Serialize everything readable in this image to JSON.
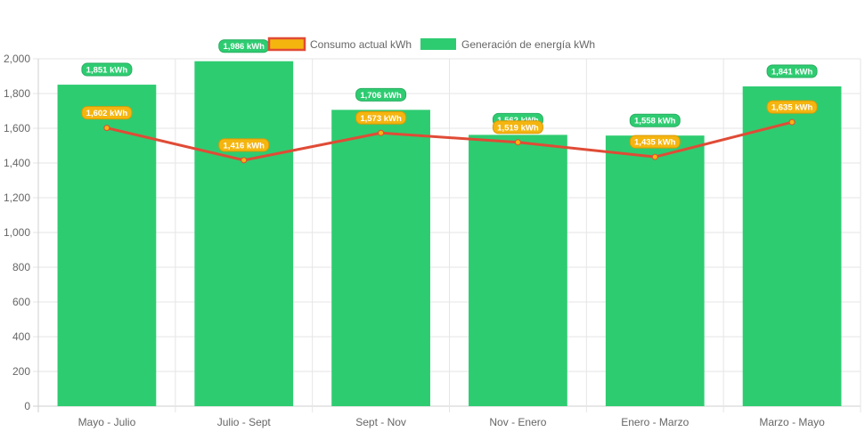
{
  "chart_data": {
    "type": "bar",
    "categories": [
      "Mayo - Julio",
      "Julio - Sept",
      "Sept - Nov",
      "Nov - Enero",
      "Enero - Marzo",
      "Marzo - Mayo"
    ],
    "series": [
      {
        "name": "Consumo actual kWh",
        "type": "line",
        "values": [
          1602,
          1416,
          1573,
          1519,
          1435,
          1635
        ],
        "labels": [
          "1,602 kWh",
          "1,416 kWh",
          "1,573 kWh",
          "1,519 kWh",
          "1,435 kWh",
          "1,635 kWh"
        ],
        "color": "#e04b36",
        "label_color": "#f5b50f"
      },
      {
        "name": "Generación de energía kWh",
        "type": "bar",
        "values": [
          1851,
          1986,
          1706,
          1562,
          1558,
          1841
        ],
        "labels": [
          "1,851 kWh",
          "1,986 kWh",
          "1,706 kWh",
          "1,562 kWh",
          "1,558 kWh",
          "1,841 kWh"
        ],
        "color": "#2ecc71"
      }
    ],
    "y_ticks": [
      "0",
      "200",
      "400",
      "600",
      "800",
      "1,000",
      "1,200",
      "1,400",
      "1,600",
      "1,800",
      "2,000"
    ],
    "title": "",
    "xlabel": "",
    "ylabel": "",
    "ylim": [
      0,
      2000
    ],
    "grid": true,
    "legend_position": "top-center"
  }
}
